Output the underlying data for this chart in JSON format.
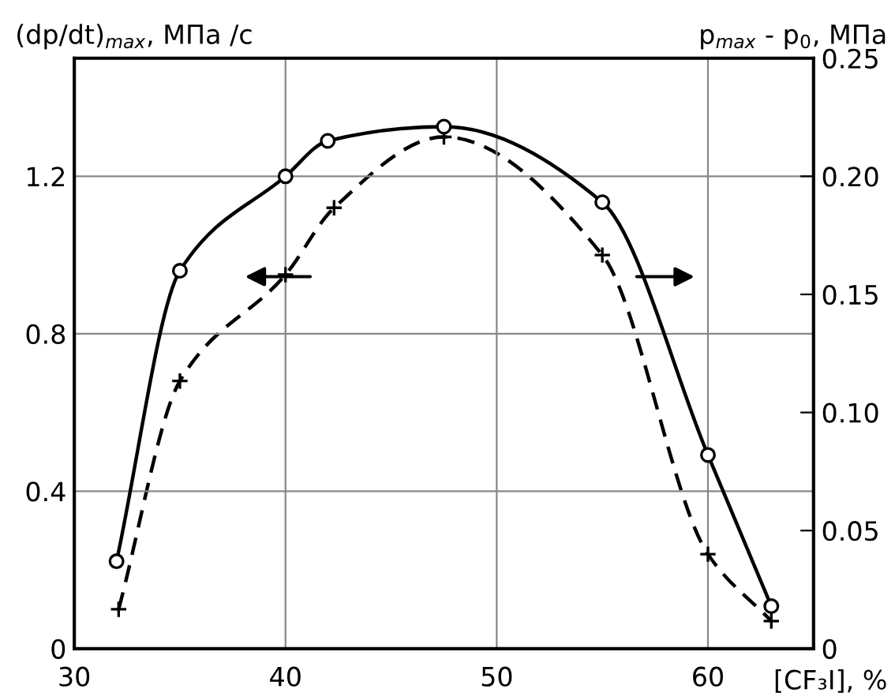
{
  "chart_data": {
    "type": "line",
    "xlabel": "[CF₃I], %",
    "ylabel": "(dp/dt)$_{max}$, МПа /с",
    "y2label": "p$_{max}$ - p$_{0}$, МПа",
    "xlim": [
      30,
      65
    ],
    "xticks": [
      30,
      40,
      50,
      60
    ],
    "ylim": [
      0,
      1.5
    ],
    "yticks": [
      0,
      0.4,
      0.8,
      1.2
    ],
    "y2lim": [
      0,
      0.25
    ],
    "y2ticks": [
      0,
      0.05,
      {
        "value": 0.1,
        "label": "0.10"
      },
      0.15,
      {
        "value": 0.2,
        "label": "0.20"
      },
      0.25
    ],
    "grid": true,
    "legend": false,
    "series": [
      {
        "color": "#000000",
        "marker": "circle",
        "line_style": "solid",
        "axis": "y2",
        "x": [
          32,
          35,
          40,
          42,
          47.5,
          55,
          60,
          63
        ],
        "values": [
          0.037,
          0.16,
          0.2,
          0.215,
          0.221,
          0.189,
          0.082,
          0.018
        ]
      },
      {
        "color": "#000000",
        "marker": "cross",
        "line_style": "dashed",
        "axis": "y",
        "x": [
          32.1,
          35,
          40,
          42.3,
          47.5,
          55,
          60,
          63
        ],
        "values": [
          0.1,
          0.68,
          0.95,
          1.12,
          1.3,
          1.0,
          0.24,
          0.07
        ]
      }
    ]
  }
}
